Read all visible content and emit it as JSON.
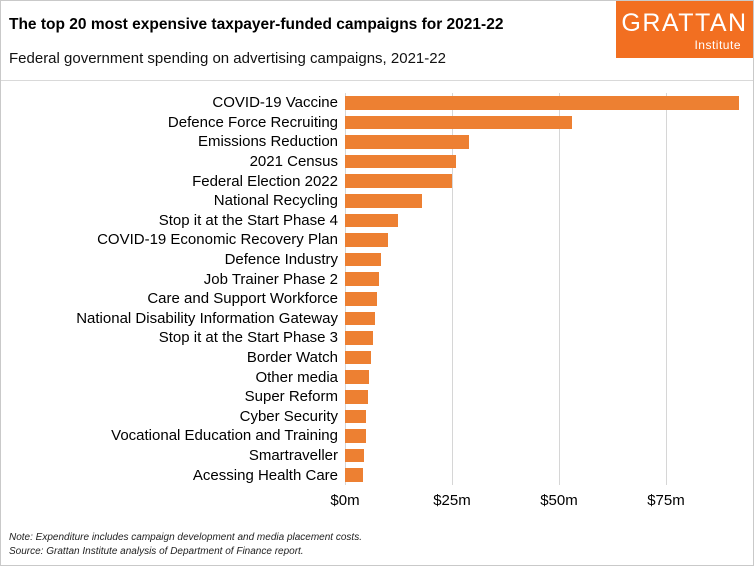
{
  "header": {
    "logo": {
      "name": "GRATTAN",
      "sub": "Institute"
    }
  },
  "chart_data": {
    "type": "bar",
    "orientation": "horizontal",
    "title": "The top 20 most expensive taxpayer-funded campaigns for 2021-22",
    "subtitle": "Federal government spending on advertising campaigns, 2021-22",
    "unit": "$m",
    "categories": [
      "COVID-19 Vaccine",
      "Defence Force Recruiting",
      "Emissions Reduction",
      "2021 Census",
      "Federal Election 2022",
      "National Recycling",
      "Stop it at the Start Phase 4",
      "COVID-19 Economic Recovery Plan",
      "Defence Industry",
      "Job Trainer Phase 2",
      "Care and Support Workforce",
      "National Disability Information Gateway",
      "Stop it at the Start Phase 3",
      "Border Watch",
      "Other media",
      "Super Reform",
      "Cyber Security",
      "Vocational Education and Training",
      "Smartraveller",
      "Acessing Health Care"
    ],
    "values": [
      92,
      53,
      29,
      26,
      25,
      18,
      12.5,
      10,
      8.5,
      8,
      7.5,
      7,
      6.5,
      6,
      5.7,
      5.3,
      5,
      4.8,
      4.4,
      4.2
    ],
    "x_tick_labels": [
      "$0m",
      "$25m",
      "$50m",
      "$75m"
    ],
    "x_tick_values": [
      0,
      25,
      50,
      75
    ],
    "xlim": [
      0,
      93
    ],
    "bar_color": "#ED8032",
    "grid": true,
    "legend": false
  },
  "footer": {
    "note": "Note: Expenditure includes campaign development and media placement costs.",
    "source": "Source: Grattan Institute analysis of Department of Finance report."
  },
  "colors": {
    "accent": "#ED8032",
    "logo_bg": "#F26F21",
    "gridline": "#d6d6d6"
  }
}
